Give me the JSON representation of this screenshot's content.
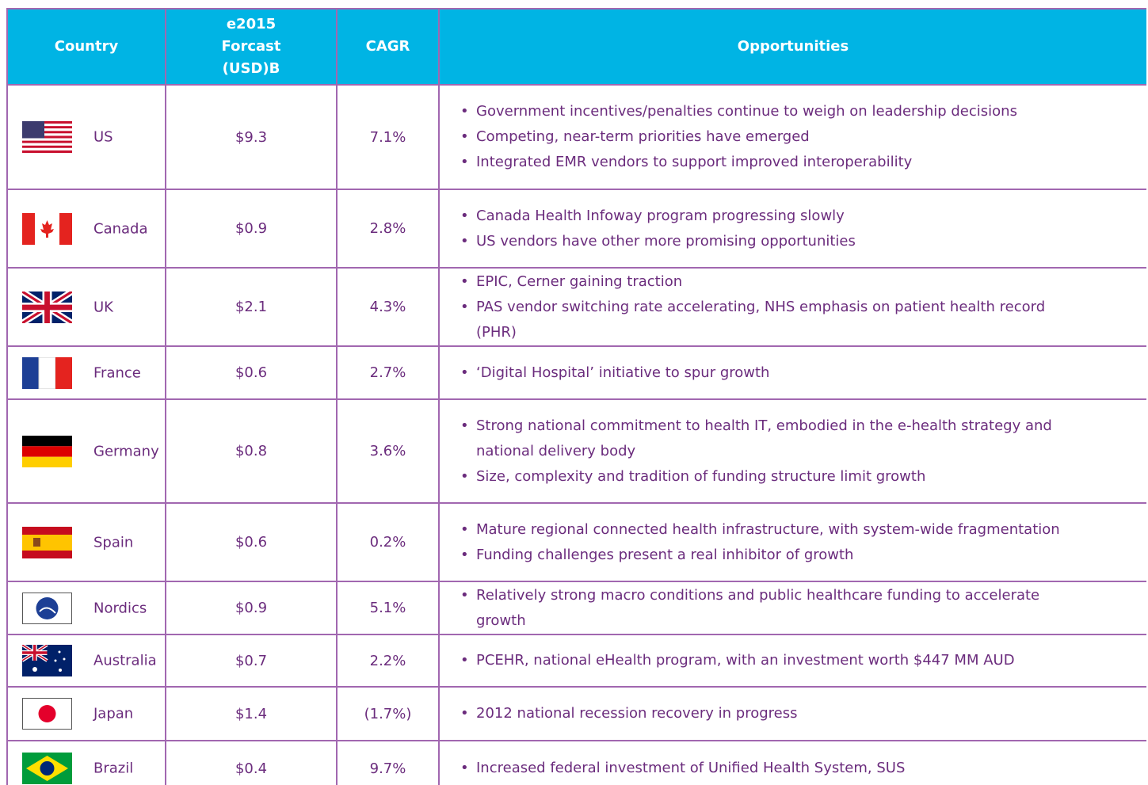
{
  "table": {
    "header": [
      "Country",
      "e2015 Forcast (USD)B",
      "CAGR",
      "Opportunities"
    ],
    "rows": [
      {
        "country": "US",
        "forecast": "$9.3",
        "cagr": "7.1%",
        "opportunities": [
          "Government incentives/penalties continue to weigh on leadership decisions",
          "Competing, near-term priorities have emerged",
          "Integrated EMR vendors to support improved interoperability"
        ]
      },
      {
        "country": "Canada",
        "forecast": "$0.9",
        "cagr": "2.8%",
        "opportunities": [
          "Canada Health Infoway program progressing slowly",
          "US vendors have other more promising opportunities"
        ]
      },
      {
        "country": "UK",
        "forecast": "$2.1",
        "cagr": "4.3%",
        "opportunities": [
          "EPIC, Cerner gaining traction",
          "PAS vendor switching rate accelerating, NHS emphasis on patient health record (PHR)"
        ]
      },
      {
        "country": "France",
        "forecast": "$0.6",
        "cagr": "2.7%",
        "opportunities": [
          "‘Digital Hospital’ initiative to spur growth"
        ]
      },
      {
        "country": "Germany",
        "forecast": "$0.8",
        "cagr": "3.6%",
        "opportunities": [
          "Strong national commitment to health IT, embodied in the e-health strategy and national delivery body",
          "Size, complexity and tradition of funding structure limit growth"
        ]
      },
      {
        "country": "Spain",
        "forecast": "$0.6",
        "cagr": "0.2%",
        "opportunities": [
          "Mature regional connected health infrastructure, with system-wide fragmentation",
          "Funding challenges present a real inhibitor of growth"
        ]
      },
      {
        "country": "Nordics",
        "forecast": "$0.9",
        "cagr": "5.1%",
        "opportunities": [
          "Relatively strong macro conditions and public healthcare funding to accelerate growth"
        ]
      },
      {
        "country": "Australia",
        "forecast": "$0.7",
        "cagr": "2.2%",
        "opportunities": [
          "PCEHR, national eHealth program, with an investment worth $447 MM AUD"
        ]
      },
      {
        "country": "Japan",
        "forecast": "$1.4",
        "cagr": "(1.7%)",
        "opportunities": [
          "2012 national recession recovery in progress"
        ]
      },
      {
        "country": "Brazil",
        "forecast": "$0.4",
        "cagr": "9.7%",
        "opportunities": [
          "Increased federal investment of Unified Health System, SUS"
        ]
      }
    ]
  }
}
